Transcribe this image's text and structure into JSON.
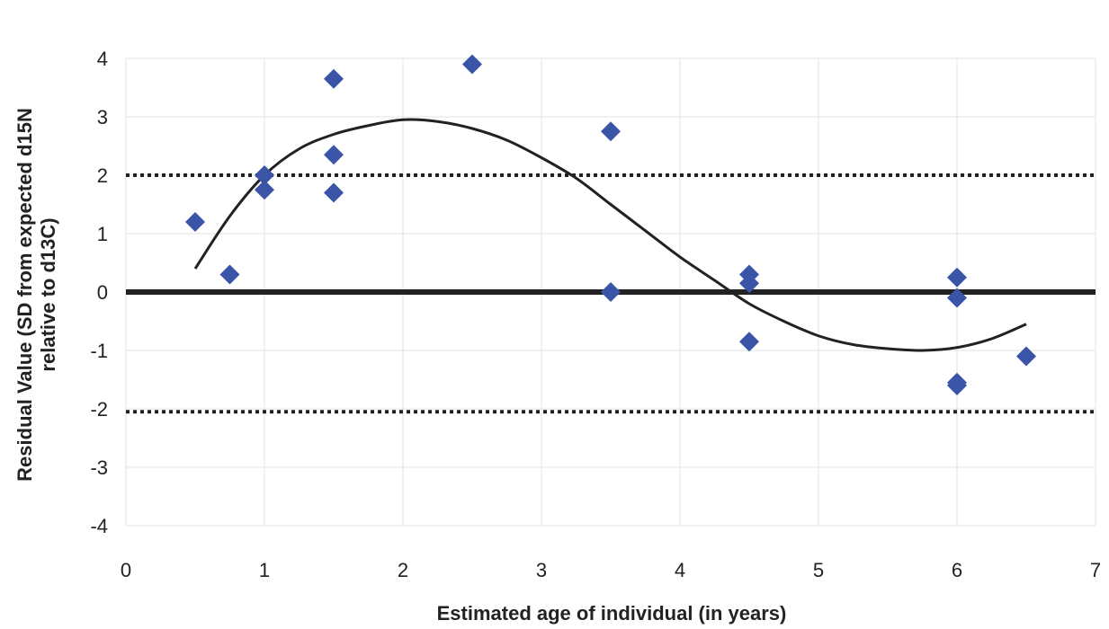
{
  "chart_data": {
    "type": "scatter",
    "title": "",
    "xlabel": "Estimated age of individual (in years)",
    "ylabel_lines": [
      "Residual Value (SD from expected d15N",
      "relative to d13C)"
    ],
    "xlim": [
      0,
      7
    ],
    "ylim": [
      -4,
      4
    ],
    "xticks": [
      0,
      1,
      2,
      3,
      4,
      5,
      6,
      7
    ],
    "yticks": [
      -4,
      -3,
      -2,
      -1,
      0,
      1,
      2,
      3,
      4
    ],
    "grid": true,
    "legend": "none",
    "points": [
      {
        "x": 0.5,
        "y": 1.2
      },
      {
        "x": 0.75,
        "y": 0.3
      },
      {
        "x": 1.0,
        "y": 2.0
      },
      {
        "x": 1.0,
        "y": 1.75
      },
      {
        "x": 1.5,
        "y": 3.65
      },
      {
        "x": 1.5,
        "y": 2.35
      },
      {
        "x": 1.5,
        "y": 1.7
      },
      {
        "x": 2.5,
        "y": 3.9
      },
      {
        "x": 3.5,
        "y": 2.75
      },
      {
        "x": 3.5,
        "y": 0.0
      },
      {
        "x": 4.5,
        "y": 0.3
      },
      {
        "x": 4.5,
        "y": 0.15
      },
      {
        "x": 4.5,
        "y": -0.85
      },
      {
        "x": 6.0,
        "y": 0.25
      },
      {
        "x": 6.0,
        "y": -0.1
      },
      {
        "x": 6.0,
        "y": -1.55
      },
      {
        "x": 6.0,
        "y": -1.6
      },
      {
        "x": 6.5,
        "y": -1.1
      }
    ],
    "reference_lines": [
      {
        "y": 2.0,
        "style": "dotted"
      },
      {
        "y": -2.05,
        "style": "dotted"
      },
      {
        "y": 0.0,
        "style": "solid-thick"
      }
    ],
    "trendline": {
      "type": "polynomial",
      "degree": 3,
      "points": [
        [
          0.5,
          0.4
        ],
        [
          0.75,
          1.3
        ],
        [
          1.0,
          2.0
        ],
        [
          1.25,
          2.45
        ],
        [
          1.5,
          2.7
        ],
        [
          1.75,
          2.85
        ],
        [
          2.0,
          2.95
        ],
        [
          2.25,
          2.92
        ],
        [
          2.5,
          2.8
        ],
        [
          2.75,
          2.6
        ],
        [
          3.0,
          2.3
        ],
        [
          3.25,
          1.95
        ],
        [
          3.5,
          1.5
        ],
        [
          3.75,
          1.05
        ],
        [
          4.0,
          0.6
        ],
        [
          4.25,
          0.2
        ],
        [
          4.5,
          -0.2
        ],
        [
          4.75,
          -0.5
        ],
        [
          5.0,
          -0.75
        ],
        [
          5.25,
          -0.9
        ],
        [
          5.5,
          -0.97
        ],
        [
          5.75,
          -1.0
        ],
        [
          6.0,
          -0.95
        ],
        [
          6.25,
          -0.8
        ],
        [
          6.5,
          -0.55
        ]
      ]
    },
    "colors": {
      "marker": "#3a54a8",
      "trendline": "#222222",
      "grid": "#e3e3e3",
      "reference": "#222222"
    }
  }
}
